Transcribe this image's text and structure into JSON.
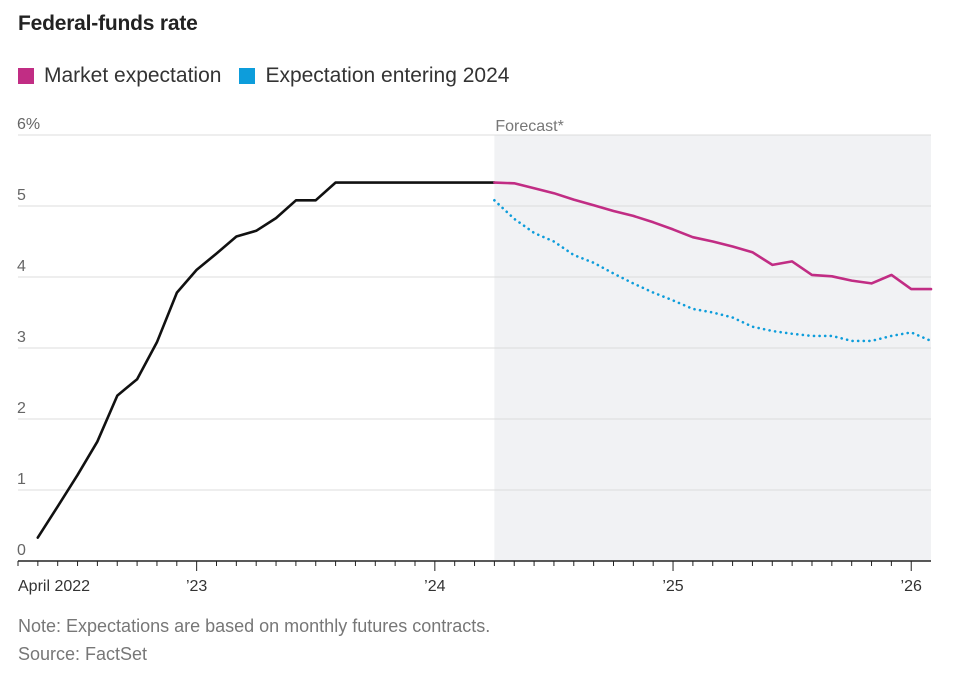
{
  "title": "Federal-funds rate",
  "legend": [
    {
      "label": "Market expectation",
      "color": "#c12d84"
    },
    {
      "label": "Expectation entering 2024",
      "color": "#0d9ddb"
    }
  ],
  "forecast_label": "Forecast*",
  "note": "Note: Expectations are based on monthly futures contracts.",
  "source": "Source: FactSet",
  "chart_data": {
    "type": "line",
    "title": "Federal-funds rate",
    "xlabel": "",
    "ylabel": "",
    "ylim": [
      0,
      6
    ],
    "xlim": [
      2022.25,
      2026.083
    ],
    "x_ticks": [
      {
        "x": 2022.25,
        "label": "April 2022"
      },
      {
        "x": 2023.0,
        "label": "’23"
      },
      {
        "x": 2024.0,
        "label": "’24"
      },
      {
        "x": 2025.0,
        "label": "’25"
      },
      {
        "x": 2026.0,
        "label": "’26"
      }
    ],
    "y_ticks": [
      {
        "y": 0,
        "label": "0"
      },
      {
        "y": 1,
        "label": "1"
      },
      {
        "y": 2,
        "label": "2"
      },
      {
        "y": 3,
        "label": "3"
      },
      {
        "y": 4,
        "label": "4"
      },
      {
        "y": 5,
        "label": "5"
      },
      {
        "y": 6,
        "label": "6%"
      }
    ],
    "forecast_start": 2024.25,
    "series": [
      {
        "name": "Federal-funds rate",
        "color": "#111111",
        "style": "solid",
        "x": [
          2022.333,
          2022.417,
          2022.5,
          2022.583,
          2022.667,
          2022.75,
          2022.833,
          2022.917,
          2023.0,
          2023.083,
          2023.167,
          2023.25,
          2023.333,
          2023.417,
          2023.5,
          2023.583,
          2023.667,
          2023.75,
          2023.833,
          2023.917,
          2024.0,
          2024.083,
          2024.167,
          2024.25
        ],
        "y": [
          0.33,
          0.77,
          1.21,
          1.68,
          2.33,
          2.56,
          3.08,
          3.78,
          4.1,
          4.33,
          4.57,
          4.65,
          4.83,
          5.08,
          5.08,
          5.33,
          5.33,
          5.33,
          5.33,
          5.33,
          5.33,
          5.33,
          5.33,
          5.33
        ]
      },
      {
        "name": "Market expectation",
        "color": "#c12d84",
        "style": "solid",
        "x": [
          2024.25,
          2024.333,
          2024.417,
          2024.5,
          2024.583,
          2024.667,
          2024.75,
          2024.833,
          2024.917,
          2025.0,
          2025.083,
          2025.167,
          2025.25,
          2025.333,
          2025.417,
          2025.5,
          2025.583,
          2025.667,
          2025.75,
          2025.833,
          2025.917,
          2026.0,
          2026.083
        ],
        "y": [
          5.33,
          5.32,
          5.25,
          5.18,
          5.09,
          5.01,
          4.93,
          4.86,
          4.77,
          4.67,
          4.56,
          4.5,
          4.43,
          4.35,
          4.17,
          4.22,
          4.03,
          4.01,
          3.95,
          3.91,
          4.03,
          3.83,
          3.83
        ]
      },
      {
        "name": "Expectation entering 2024",
        "color": "#0d9ddb",
        "style": "dotted",
        "x": [
          2024.25,
          2024.333,
          2024.417,
          2024.5,
          2024.583,
          2024.667,
          2024.75,
          2024.833,
          2024.917,
          2025.0,
          2025.083,
          2025.167,
          2025.25,
          2025.333,
          2025.417,
          2025.5,
          2025.583,
          2025.667,
          2025.75,
          2025.833,
          2025.917,
          2026.0,
          2026.083
        ],
        "y": [
          5.08,
          4.82,
          4.62,
          4.5,
          4.31,
          4.2,
          4.05,
          3.91,
          3.78,
          3.67,
          3.55,
          3.5,
          3.43,
          3.3,
          3.24,
          3.2,
          3.17,
          3.17,
          3.1,
          3.1,
          3.17,
          3.22,
          3.1
        ]
      }
    ]
  }
}
